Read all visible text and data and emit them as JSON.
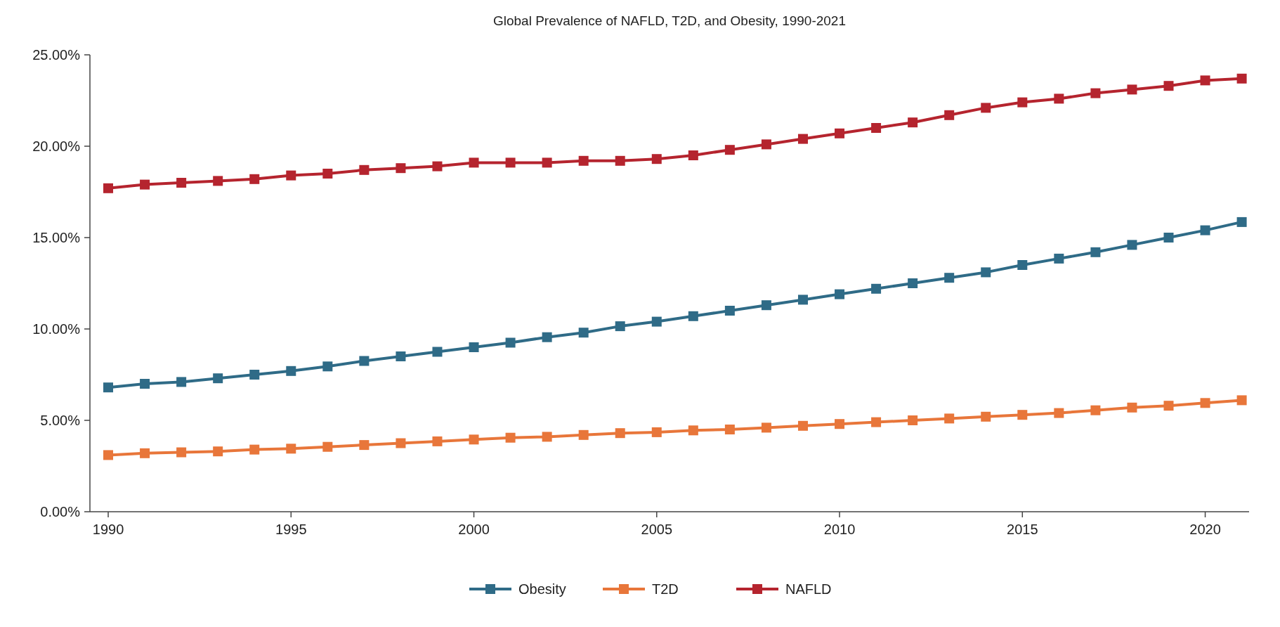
{
  "chart_data": {
    "type": "line",
    "title": "Global Prevalence of NAFLD, T2D, and Obesity, 1990-2021",
    "x": [
      1990,
      1991,
      1992,
      1993,
      1994,
      1995,
      1996,
      1997,
      1998,
      1999,
      2000,
      2001,
      2002,
      2003,
      2004,
      2005,
      2006,
      2007,
      2008,
      2009,
      2010,
      2011,
      2012,
      2013,
      2014,
      2015,
      2016,
      2017,
      2018,
      2019,
      2020,
      2021
    ],
    "series": [
      {
        "name": "Obesity",
        "color": "#2f6b87",
        "values": [
          6.8,
          7.0,
          7.1,
          7.3,
          7.5,
          7.7,
          7.95,
          8.25,
          8.5,
          8.75,
          9.0,
          9.25,
          9.55,
          9.8,
          10.15,
          10.4,
          10.7,
          11.0,
          11.3,
          11.6,
          11.9,
          12.2,
          12.5,
          12.8,
          13.1,
          13.5,
          13.85,
          14.2,
          14.6,
          15.0,
          15.4,
          15.85
        ]
      },
      {
        "name": "T2D",
        "color": "#e8763a",
        "values": [
          3.1,
          3.2,
          3.25,
          3.3,
          3.4,
          3.45,
          3.55,
          3.65,
          3.75,
          3.85,
          3.95,
          4.05,
          4.1,
          4.2,
          4.3,
          4.35,
          4.45,
          4.5,
          4.6,
          4.7,
          4.8,
          4.9,
          5.0,
          5.1,
          5.2,
          5.3,
          5.4,
          5.55,
          5.7,
          5.8,
          5.95,
          6.1
        ]
      },
      {
        "name": "NAFLD",
        "color": "#b5242e",
        "values": [
          17.7,
          17.9,
          18.0,
          18.1,
          18.2,
          18.4,
          18.5,
          18.7,
          18.8,
          18.9,
          19.1,
          19.1,
          19.1,
          19.2,
          19.2,
          19.3,
          19.5,
          19.8,
          20.1,
          20.4,
          20.7,
          21.0,
          21.3,
          21.7,
          22.1,
          22.4,
          22.6,
          22.9,
          23.1,
          23.3,
          23.6,
          23.7
        ]
      }
    ],
    "xlim": [
      1989.5,
      2021.2
    ],
    "xticks": [
      1990,
      1995,
      2000,
      2005,
      2010,
      2015,
      2020
    ],
    "ylim": [
      0,
      25
    ],
    "yticks": [
      {
        "value": 0,
        "label": "0.00%"
      },
      {
        "value": 5,
        "label": "5.00%"
      },
      {
        "value": 10,
        "label": "10.00%"
      },
      {
        "value": 15,
        "label": "15.00%"
      },
      {
        "value": 20,
        "label": "20.00%"
      },
      {
        "value": 25,
        "label": "25.00%"
      }
    ],
    "marker": "square",
    "line_style": "solid",
    "legend": "bottom",
    "grid": false
  }
}
